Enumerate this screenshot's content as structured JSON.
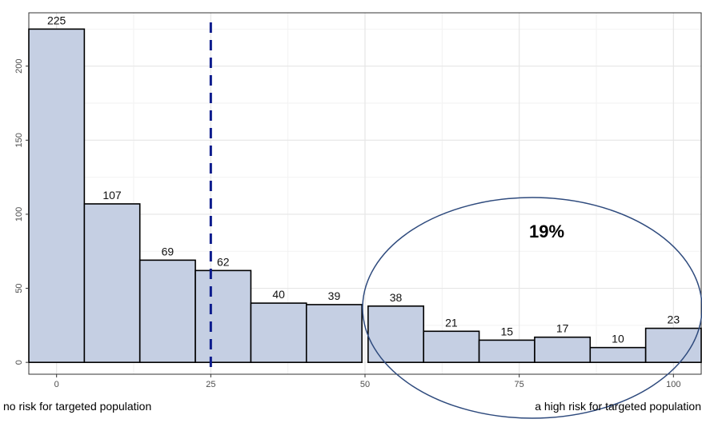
{
  "chart_data": {
    "type": "bar",
    "categories": [
      "0",
      "9",
      "18",
      "27",
      "36",
      "45",
      "55",
      "64",
      "73",
      "82",
      "91",
      "100"
    ],
    "values": [
      225,
      107,
      69,
      62,
      40,
      39,
      38,
      21,
      15,
      17,
      10,
      23
    ],
    "data_labels": [
      "225",
      "107",
      "69",
      "62",
      "40",
      "39",
      "38",
      "21",
      "15",
      "17",
      "10",
      "23"
    ],
    "x_ticks": [
      "0",
      "25",
      "50",
      "75",
      "100"
    ],
    "y_ticks": [
      "0",
      "50",
      "100",
      "150",
      "200"
    ],
    "xlim": [
      -4.5,
      104.5
    ],
    "ylim": [
      -8,
      236
    ],
    "bin_width": 9,
    "reference_line": {
      "x": 25,
      "style": "dashed",
      "color": "#0a1a8c"
    },
    "annotation": {
      "text": "19%",
      "shape": "ellipse"
    },
    "x_caption_left": "no risk for targeted population",
    "x_caption_right": "a high risk for targeted population",
    "grid": true,
    "colors": {
      "bar_fill": "#c5cfe3",
      "bar_stroke": "#000000",
      "ellipse": "#2e4a7d",
      "grid": "#e6e6e6",
      "axis_text": "#4d4d4d"
    }
  }
}
